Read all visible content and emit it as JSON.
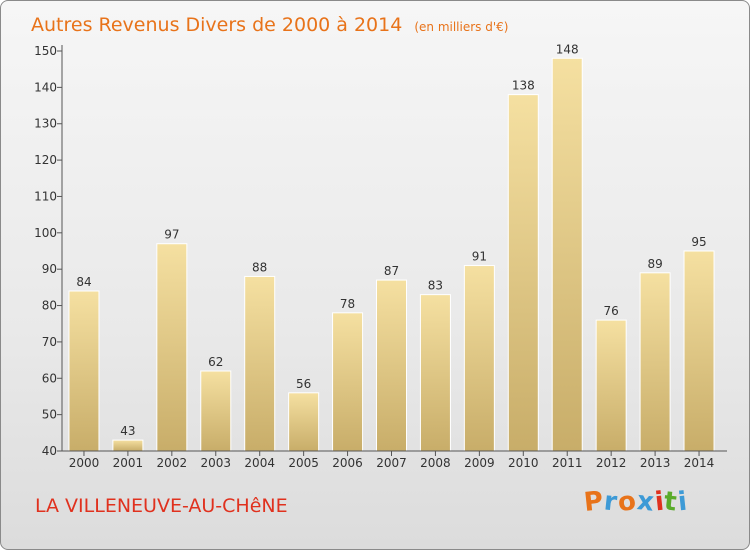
{
  "chart_data": {
    "type": "bar",
    "title": "Autres Revenus Divers de 2000 à 2014",
    "subtitle": "(en milliers d'€)",
    "xlabel": "",
    "ylabel": "",
    "categories": [
      "2000",
      "2001",
      "2002",
      "2003",
      "2004",
      "2005",
      "2006",
      "2007",
      "2008",
      "2009",
      "2010",
      "2011",
      "2012",
      "2013",
      "2014"
    ],
    "values": [
      84,
      43,
      97,
      62,
      88,
      56,
      78,
      87,
      83,
      91,
      138,
      148,
      76,
      89,
      95
    ],
    "ylim": [
      40,
      150
    ],
    "yticks": [
      40,
      50,
      60,
      70,
      80,
      90,
      100,
      110,
      120,
      130,
      140,
      150
    ],
    "grid": false,
    "data_labels": true,
    "colors": {
      "bar_light": "#f3dc9a",
      "bar_dark": "#c9ae6a",
      "title": "#e8731a"
    }
  },
  "footer": {
    "location": "LA VILLENEUVE-AU-CHêNE",
    "logo": "Proxiti",
    "logo_colors": [
      "#e8731a",
      "#3d9ad6",
      "#e8731a",
      "#3d9ad6",
      "#e0311e",
      "#5aab2a",
      "#3d9ad6"
    ]
  }
}
